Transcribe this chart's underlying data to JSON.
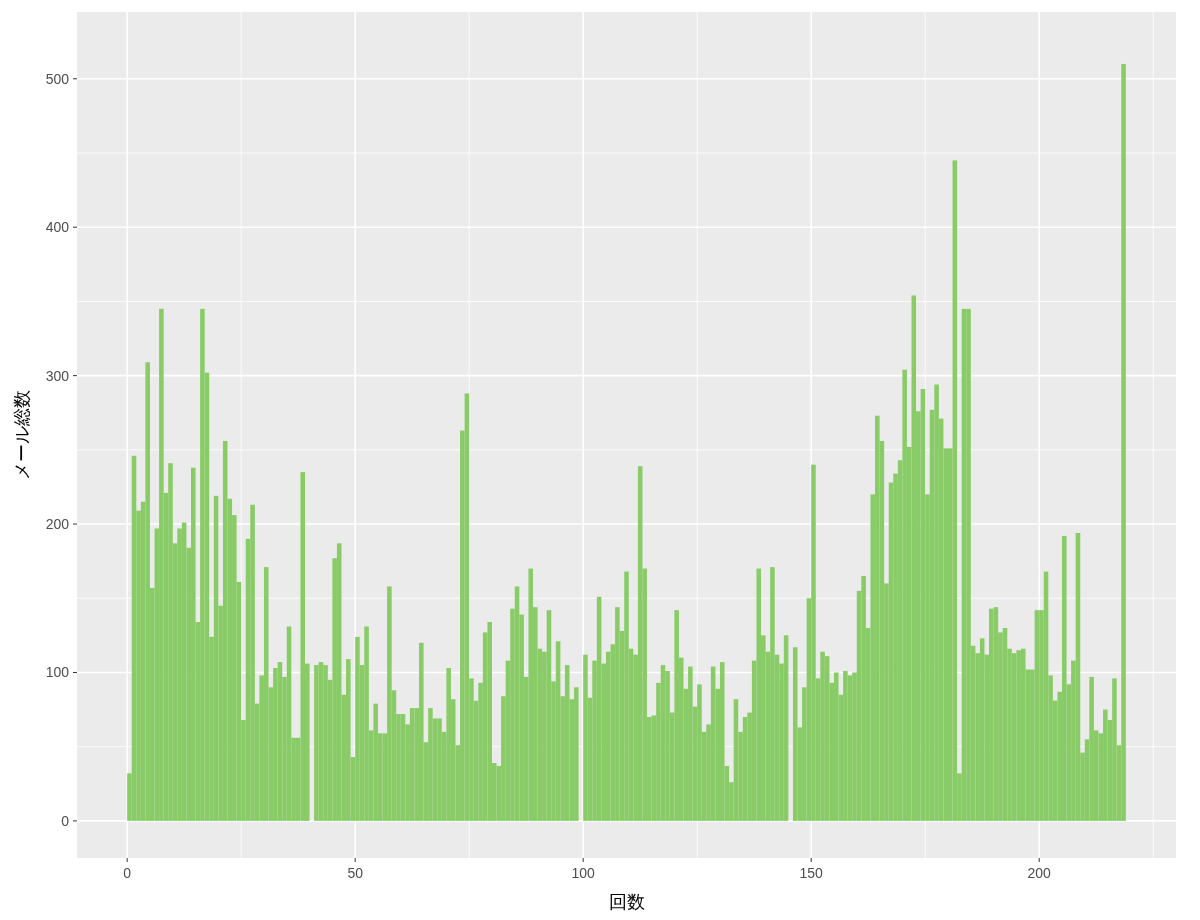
{
  "chart_data": {
    "type": "histogram",
    "xlabel": "回数",
    "ylabel": "メール総数",
    "color": "#89cc67",
    "bins": [
      0,
      1,
      2,
      3,
      4,
      5,
      6,
      7,
      8,
      9,
      10,
      11,
      12,
      13,
      14,
      15,
      16,
      17,
      18,
      19,
      20,
      21,
      22,
      23,
      24,
      25,
      26,
      27,
      28,
      29,
      30,
      31,
      32,
      33,
      34,
      35,
      36,
      37,
      38,
      39,
      40,
      41,
      42,
      43,
      44,
      45,
      46,
      47,
      48,
      49,
      50,
      51,
      52,
      53,
      54,
      55,
      56,
      57,
      58,
      59,
      60,
      61,
      62,
      63,
      64,
      65,
      66,
      67,
      68,
      69,
      70,
      71,
      72,
      73,
      74,
      75,
      76,
      77,
      78,
      79,
      80,
      81,
      82,
      83,
      84,
      85,
      86,
      87,
      88,
      89,
      90,
      91,
      92,
      93,
      94,
      95,
      96,
      97,
      98,
      99,
      100,
      101,
      102,
      103,
      104,
      105,
      106,
      107,
      108,
      109,
      110,
      111,
      112,
      113,
      114,
      115,
      116,
      117,
      118,
      119,
      120,
      121,
      122,
      123,
      124,
      125,
      126,
      127,
      128,
      129,
      130,
      131,
      132,
      133,
      134,
      135,
      136,
      137,
      138,
      139,
      140,
      141,
      142,
      143,
      144,
      145,
      146,
      147,
      148,
      149,
      150,
      151,
      152,
      153,
      154,
      155,
      156,
      157,
      158,
      159,
      160,
      161,
      162,
      163,
      164,
      165,
      166,
      167,
      168,
      169,
      170,
      171,
      172,
      173,
      174,
      175,
      176,
      177,
      178,
      179,
      180,
      181,
      182,
      183,
      184,
      185,
      186,
      187,
      188,
      189,
      190,
      191,
      192,
      193,
      194,
      195,
      196,
      197,
      198,
      199,
      200,
      201,
      202,
      203,
      204,
      205,
      206,
      207,
      208,
      209,
      210,
      211,
      212,
      213,
      214,
      215,
      216,
      217,
      218,
      219
    ],
    "values": [
      32,
      246,
      209,
      215,
      309,
      157,
      197,
      345,
      221,
      241,
      187,
      197,
      201,
      184,
      238,
      134,
      345,
      302,
      124,
      219,
      145,
      256,
      217,
      206,
      161,
      68,
      190,
      213,
      79,
      98,
      171,
      90,
      103,
      107,
      97,
      131,
      56,
      56,
      235,
      106,
      0,
      105,
      107,
      105,
      95,
      177,
      187,
      85,
      109,
      43,
      124,
      105,
      131,
      61,
      79,
      59,
      59,
      158,
      88,
      72,
      72,
      65,
      76,
      76,
      120,
      53,
      76,
      69,
      69,
      60,
      103,
      82,
      51,
      263,
      288,
      96,
      81,
      93,
      127,
      134,
      39,
      37,
      84,
      108,
      143,
      158,
      139,
      97,
      170,
      144,
      116,
      114,
      142,
      94,
      121,
      84,
      105,
      82,
      90,
      0,
      112,
      83,
      108,
      151,
      106,
      114,
      119,
      144,
      128,
      168,
      116,
      112,
      239,
      170,
      70,
      71,
      93,
      105,
      101,
      73,
      142,
      110,
      89,
      104,
      77,
      92,
      60,
      65,
      104,
      89,
      107,
      37,
      26,
      82,
      60,
      70,
      73,
      108,
      170,
      125,
      114,
      171,
      112,
      106,
      125,
      0,
      117,
      63,
      90,
      150,
      240,
      96,
      114,
      111,
      93,
      100,
      85,
      101,
      98,
      100,
      155,
      165,
      130,
      220,
      273,
      256,
      160,
      228,
      234,
      243,
      304,
      252,
      354,
      276,
      291,
      220,
      277,
      294,
      271,
      251,
      251,
      445,
      32,
      345,
      345,
      118,
      113,
      123,
      112,
      143,
      144,
      127,
      130,
      116,
      113,
      115,
      116,
      102,
      102,
      142,
      142,
      168,
      98,
      81,
      87,
      192,
      92,
      108,
      194,
      46,
      55,
      97,
      61,
      59,
      75,
      68,
      96,
      51,
      510
    ],
    "xlim": [
      -11,
      230
    ],
    "ylim": [
      -25,
      545
    ],
    "xticks": [
      0,
      50,
      100,
      150,
      200
    ],
    "yticks": [
      0,
      100,
      200,
      300,
      400,
      500
    ],
    "grid": true
  }
}
